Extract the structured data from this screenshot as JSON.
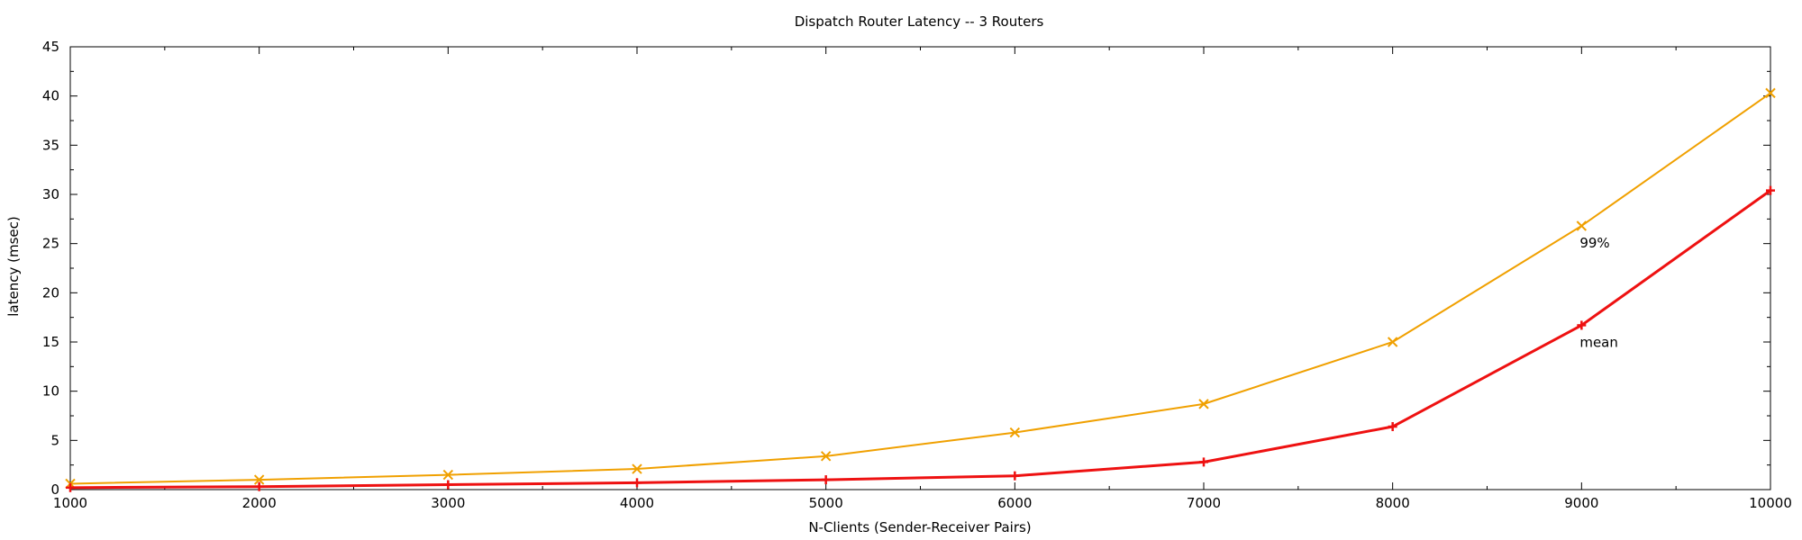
{
  "chart_data": {
    "type": "line",
    "title": "Dispatch Router Latency -- 3 Routers",
    "xlabel": "N-Clients  (Sender-Receiver Pairs)",
    "ylabel": "latency (msec)",
    "xlim": [
      1000,
      10000
    ],
    "ylim": [
      0,
      45
    ],
    "x_ticks": [
      1000,
      2000,
      3000,
      4000,
      5000,
      6000,
      7000,
      8000,
      9000,
      10000
    ],
    "y_ticks": [
      0,
      5,
      10,
      15,
      20,
      25,
      30,
      35,
      40,
      45
    ],
    "grid": false,
    "legend": "none",
    "x": [
      1000,
      2000,
      3000,
      4000,
      5000,
      6000,
      7000,
      8000,
      9000,
      10000
    ],
    "series": [
      {
        "name": "99%",
        "marker": "x",
        "color": "#f0a000",
        "values": [
          0.6,
          1.0,
          1.5,
          2.1,
          3.4,
          5.8,
          8.7,
          15.0,
          26.8,
          40.3
        ]
      },
      {
        "name": "mean",
        "marker": "+",
        "color": "#ee1111",
        "values": [
          0.2,
          0.3,
          0.5,
          0.7,
          1.0,
          1.4,
          2.8,
          6.4,
          16.7,
          30.4
        ]
      }
    ],
    "annotations": [
      {
        "text": "99%",
        "series": 0
      },
      {
        "text": "mean",
        "series": 1
      }
    ]
  }
}
